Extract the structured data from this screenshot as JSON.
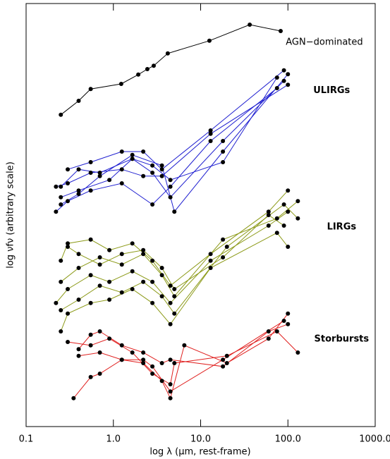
{
  "chart_data": {
    "type": "line",
    "xlabel": "log λ (μm, rest-frame)",
    "ylabel": "log νfν (arbitrary scale)",
    "xlog": true,
    "xlim": [
      0.1,
      1000
    ],
    "xticks": [
      {
        "value": 0.1,
        "label": "0.1"
      },
      {
        "value": 1,
        "label": "1.0"
      },
      {
        "value": 10,
        "label": "10.0"
      },
      {
        "value": 100,
        "label": "100.0"
      },
      {
        "value": 1000,
        "label": "1000.0"
      }
    ],
    "ylim": [
      0,
      100
    ],
    "marker_color": "#000000",
    "series": [
      {
        "name": "AGN−dominated",
        "color": "#000000",
        "lines": [
          {
            "x": [
              0.25,
              0.4,
              0.55,
              1.23,
              1.93,
              2.45,
              2.9,
              4.2,
              12.6,
              36.5,
              82.6
            ],
            "values": [
              73.7,
              77,
              79.8,
              81,
              83.2,
              84.5,
              85.3,
              88.2,
              91.2,
              95,
              93.5
            ]
          }
        ]
      },
      {
        "name": "ULIRGs",
        "color": "#1f1fd0",
        "lines": [
          {
            "x": [
              0.3,
              0.55,
              1.25,
              2.2,
              3.6,
              13,
              90
            ],
            "values": [
              60.8,
              62.5,
              65,
              65,
              60.8,
              70,
              84.2
            ]
          },
          {
            "x": [
              0.25,
              0.4,
              0.7,
              1.65,
              2.8,
              4.5,
              18,
              75
            ],
            "values": [
              56.7,
              60.8,
              60,
              63.3,
              61.7,
              58.3,
              62.5,
              82.5
            ]
          },
          {
            "x": [
              0.22,
              0.3,
              0.55,
              1.25,
              2.2,
              3.6,
              13,
              100
            ],
            "values": [
              56.7,
              57.5,
              60,
              60.8,
              59.2,
              59.2,
              69.2,
              80.8
            ]
          },
          {
            "x": [
              0.25,
              0.4,
              0.9,
              1.65,
              2.8,
              4.5,
              18,
              90
            ],
            "values": [
              54.2,
              55.8,
              58.3,
              63.3,
              60,
              54.2,
              67.5,
              81.7
            ]
          },
          {
            "x": [
              0.22,
              0.3,
              0.55,
              1.25,
              2.8,
              4.5,
              13,
              75
            ],
            "values": [
              50.8,
              53.3,
              55.8,
              57.5,
              52.5,
              56.7,
              67.5,
              80
            ]
          },
          {
            "x": [
              0.25,
              0.4,
              0.7,
              1.65,
              3.6,
              5,
              18,
              100
            ],
            "values": [
              52.5,
              55,
              59.2,
              64.2,
              61.7,
              50.8,
              65,
              83.3
            ]
          }
        ]
      },
      {
        "name": "LIRGs",
        "color": "#8c9a18",
        "lines": [
          {
            "x": [
              0.25,
              0.3,
              0.55,
              0.9,
              1.65,
              2.8,
              4.5,
              13,
              60,
              100
            ],
            "values": [
              39.2,
              43.3,
              44.2,
              41.7,
              43.3,
              39.2,
              33.3,
              40.8,
              50.8,
              55.8
            ]
          },
          {
            "x": [
              0.25,
              0.4,
              0.7,
              1.25,
              2.2,
              3.6,
              5,
              18,
              75,
              130
            ],
            "values": [
              34.2,
              37.5,
              40,
              38.3,
              40.8,
              35.8,
              30.8,
              44.2,
              49.2,
              53.3
            ]
          },
          {
            "x": [
              0.22,
              0.3,
              0.55,
              0.9,
              1.65,
              2.8,
              4.5,
              13,
              60,
              100
            ],
            "values": [
              29.2,
              32.5,
              35.8,
              34.2,
              36.7,
              34.2,
              29.2,
              39.2,
              47.5,
              50.8
            ]
          },
          {
            "x": [
              0.25,
              0.4,
              0.7,
              1.25,
              2.2,
              3.6,
              5,
              20,
              90,
              130
            ],
            "values": [
              27.5,
              30,
              33.3,
              31.7,
              34.2,
              30.8,
              26.7,
              42.5,
              52.5,
              49.2
            ]
          },
          {
            "x": [
              0.25,
              0.3,
              0.55,
              0.9,
              1.65,
              2.8,
              4.5,
              13,
              75,
              100
            ],
            "values": [
              22.5,
              26.7,
              29.2,
              30,
              32.5,
              29.2,
              24.2,
              37.5,
              45.8,
              42.5
            ]
          },
          {
            "x": [
              0.3,
              0.4,
              0.7,
              1.25,
              2.2,
              3.6,
              5,
              18,
              60,
              90
            ],
            "values": [
              42.5,
              40.8,
              38.3,
              40.8,
              41.7,
              37.5,
              32.5,
              40,
              50,
              47.5
            ]
          }
        ]
      },
      {
        "name": "Storbursts",
        "color": "#e0201f",
        "lines": [
          {
            "x": [
              0.4,
              0.55,
              0.7,
              1.25,
              2.2,
              3.6,
              4.5,
              18,
              60,
              100
            ],
            "values": [
              18.3,
              21.7,
              22.5,
              19.2,
              17.5,
              15,
              15.8,
              14.2,
              22.5,
              24.2
            ]
          },
          {
            "x": [
              0.3,
              0.55,
              0.9,
              1.65,
              2.8,
              4.5,
              5,
              20,
              75,
              130
            ],
            "values": [
              20,
              19.2,
              20.8,
              17.5,
              12.5,
              10,
              15,
              16.7,
              22.5,
              17.5
            ]
          },
          {
            "x": [
              0.4,
              0.7,
              1.25,
              2.2,
              3.6,
              4.5,
              6.5,
              20,
              60,
              100
            ],
            "values": [
              16.7,
              17.5,
              15.8,
              15,
              10.8,
              6.7,
              19.2,
              15,
              20.8,
              26.7
            ]
          },
          {
            "x": [
              0.35,
              0.55,
              0.7,
              1.25,
              2.2,
              2.8,
              4.5,
              18,
              90
            ],
            "values": [
              6.7,
              11.7,
              12.5,
              15.8,
              15.8,
              14.2,
              8.3,
              15.8,
              25
            ]
          }
        ]
      }
    ]
  }
}
